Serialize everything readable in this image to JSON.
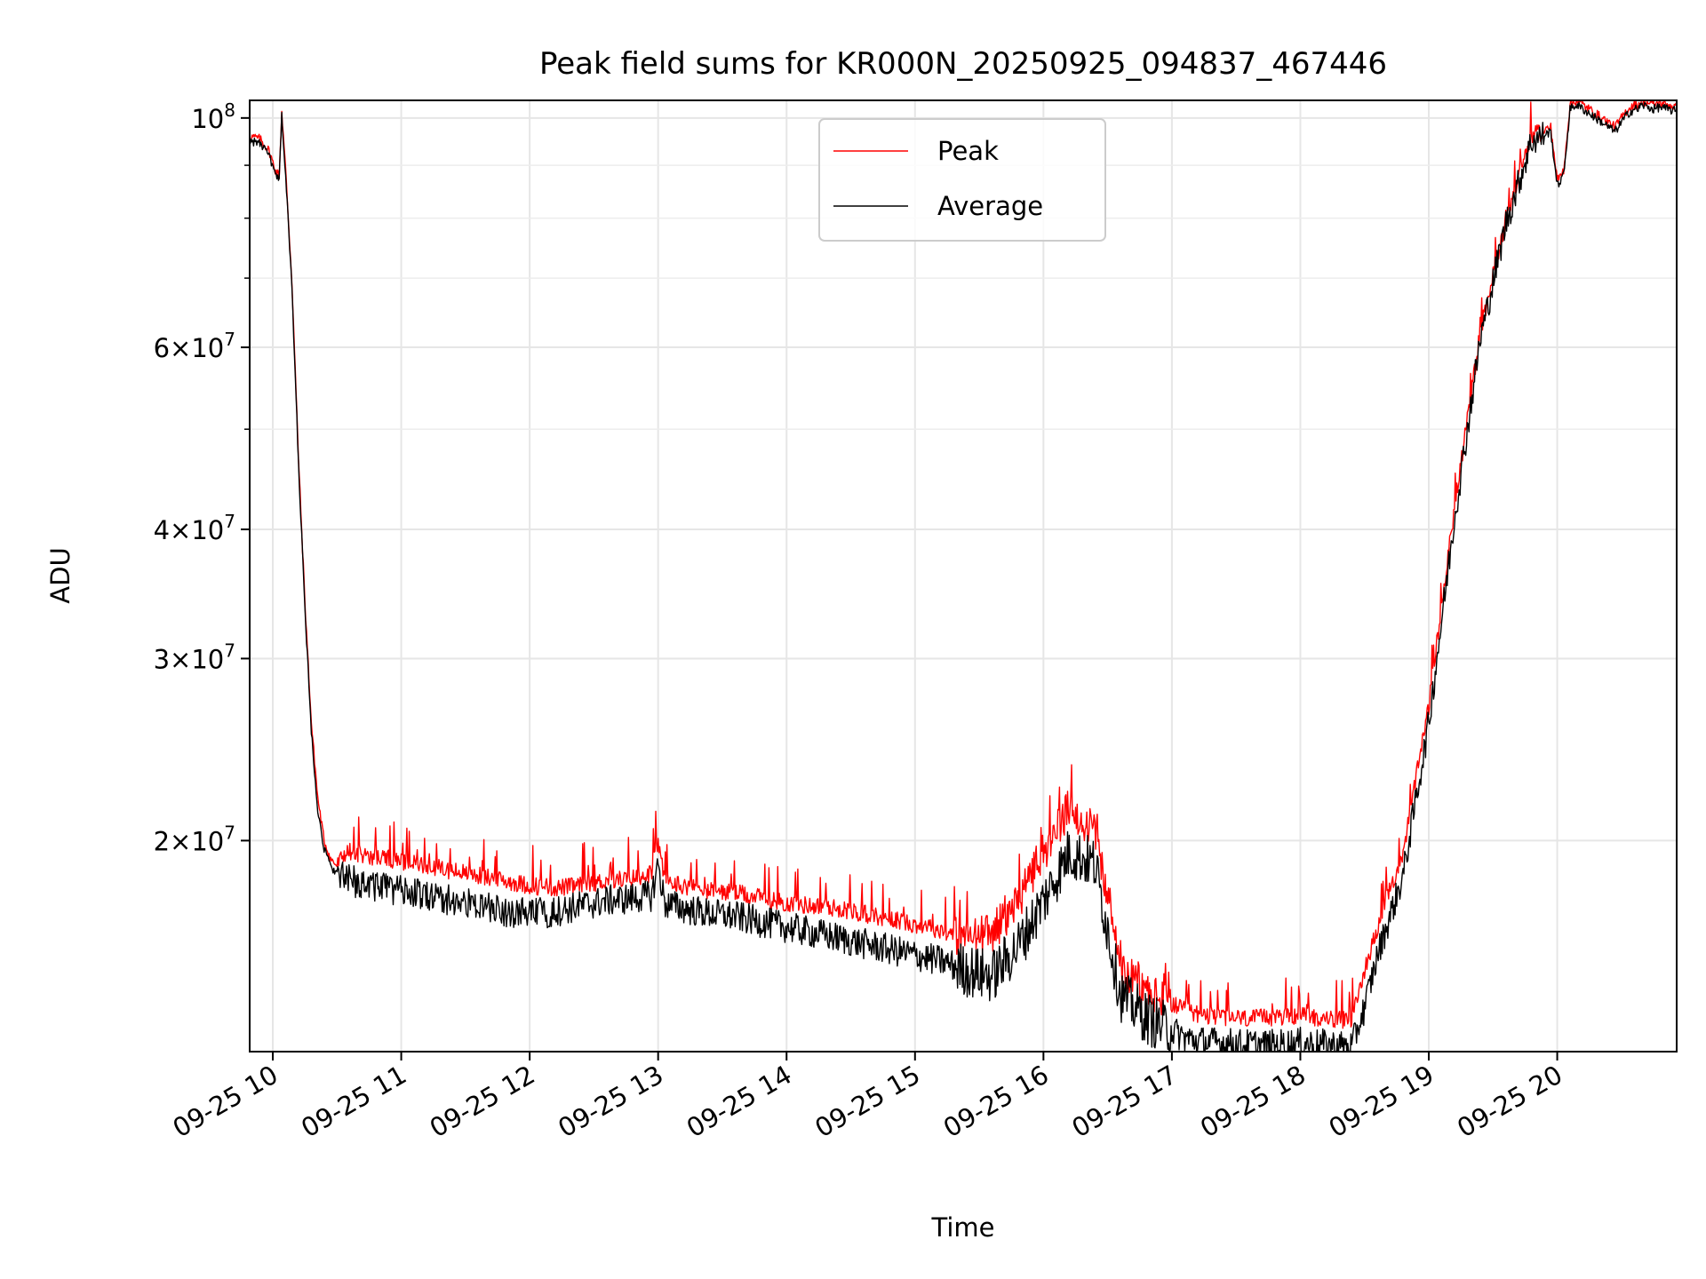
{
  "chart_data": {
    "type": "line",
    "title": "Peak field sums for KR000N_20250925_094837_467446",
    "xlabel": "Time",
    "ylabel": "ADU",
    "yscale": "log",
    "xlim": [
      9.82,
      20.93
    ],
    "ylim": [
      12500000,
      104000000
    ],
    "grid": true,
    "legend_position": "upper-center",
    "x_ticks": [
      {
        "value": 10,
        "label": "09-25 10"
      },
      {
        "value": 11,
        "label": "09-25 11"
      },
      {
        "value": 12,
        "label": "09-25 12"
      },
      {
        "value": 13,
        "label": "09-25 13"
      },
      {
        "value": 14,
        "label": "09-25 14"
      },
      {
        "value": 15,
        "label": "09-25 15"
      },
      {
        "value": 16,
        "label": "09-25 16"
      },
      {
        "value": 17,
        "label": "09-25 17"
      },
      {
        "value": 18,
        "label": "09-25 18"
      },
      {
        "value": 19,
        "label": "09-25 19"
      },
      {
        "value": 20,
        "label": "09-25 20"
      }
    ],
    "y_ticks": [
      {
        "value": 20000000,
        "mantissa": "2",
        "base": "10",
        "exp": "7"
      },
      {
        "value": 30000000,
        "mantissa": "3",
        "base": "10",
        "exp": "7"
      },
      {
        "value": 40000000,
        "mantissa": "4",
        "base": "10",
        "exp": "7"
      },
      {
        "value": 60000000,
        "mantissa": "6",
        "base": "10",
        "exp": "7"
      },
      {
        "value": 100000000,
        "mantissa": "",
        "base": "10",
        "exp": "8"
      }
    ],
    "y_minor_ticks": [
      50000000,
      70000000,
      80000000,
      90000000
    ],
    "series": [
      {
        "name": "Peak",
        "color": "#ff0000",
        "x": [
          9.82,
          9.9,
          9.97,
          10.02,
          10.05,
          10.07,
          10.1,
          10.15,
          10.2,
          10.25,
          10.3,
          10.35,
          10.4,
          10.45,
          10.5,
          10.55,
          10.6,
          10.7,
          10.8,
          11.0,
          11.2,
          11.4,
          11.6,
          11.8,
          12.0,
          12.2,
          12.4,
          12.6,
          12.8,
          12.95,
          13.0,
          13.05,
          13.2,
          13.4,
          13.6,
          13.8,
          14.0,
          14.2,
          14.4,
          14.6,
          14.8,
          15.0,
          15.2,
          15.4,
          15.6,
          15.8,
          16.0,
          16.2,
          16.4,
          16.6,
          16.8,
          16.9,
          17.0,
          17.05,
          17.1,
          17.2,
          17.4,
          17.6,
          17.8,
          18.0,
          18.2,
          18.4,
          18.5,
          18.6,
          18.8,
          19.0,
          19.2,
          19.4,
          19.6,
          19.8,
          19.95,
          20.0,
          20.05,
          20.1,
          20.15,
          20.2,
          20.25,
          20.3,
          20.35,
          20.4,
          20.45,
          20.5,
          20.55,
          20.6,
          20.63,
          20.66,
          20.7,
          20.75,
          20.8,
          20.85,
          20.93
        ],
        "y": [
          96000000,
          95500000,
          93000000,
          89000000,
          88000000,
          101500000,
          89000000,
          69000000,
          47000000,
          34000000,
          26000000,
          22000000,
          20000000,
          19200000,
          18900000,
          19400000,
          19500000,
          19400000,
          19300000,
          19100000,
          18900000,
          18700000,
          18500000,
          18300000,
          18100000,
          18000000,
          18100000,
          18300000,
          18400000,
          18600000,
          20000000,
          18300000,
          18100000,
          17900000,
          17800000,
          17600000,
          17400000,
          17300000,
          17200000,
          17000000,
          16800000,
          16600000,
          16400000,
          16100000,
          16300000,
          17500000,
          19500000,
          21500000,
          20500000,
          15000000,
          14300000,
          14100000,
          13900000,
          13800000,
          13700000,
          13600000,
          13500000,
          13450000,
          13500000,
          13550000,
          13450000,
          13400000,
          15000000,
          16500000,
          19500000,
          27000000,
          42000000,
          62000000,
          80000000,
          96000000,
          98000000,
          87000000,
          89000000,
          103000000,
          104000000,
          103000000,
          102000000,
          101000000,
          100000000,
          99000000,
          98000000,
          100000000,
          102000000,
          103000000,
          103000000,
          104000000,
          103500000,
          103000000,
          103500000,
          103000000,
          102500000
        ]
      },
      {
        "name": "Average",
        "color": "#000000",
        "x": [
          9.82,
          9.9,
          9.97,
          10.02,
          10.05,
          10.07,
          10.1,
          10.15,
          10.2,
          10.25,
          10.3,
          10.35,
          10.4,
          10.45,
          10.5,
          10.55,
          10.6,
          10.7,
          10.8,
          11.0,
          11.2,
          11.4,
          11.6,
          11.8,
          12.0,
          12.2,
          12.4,
          12.6,
          12.8,
          12.95,
          13.0,
          13.05,
          13.2,
          13.4,
          13.6,
          13.8,
          14.0,
          14.2,
          14.4,
          14.6,
          14.8,
          15.0,
          15.2,
          15.4,
          15.6,
          15.8,
          16.0,
          16.2,
          16.4,
          16.6,
          16.8,
          16.9,
          17.0,
          17.05,
          17.1,
          17.2,
          17.4,
          17.6,
          17.8,
          18.0,
          18.2,
          18.4,
          18.5,
          18.6,
          18.8,
          19.0,
          19.2,
          19.4,
          19.6,
          19.8,
          19.95,
          20.0,
          20.05,
          20.1,
          20.15,
          20.2,
          20.25,
          20.3,
          20.35,
          20.4,
          20.45,
          20.5,
          20.55,
          20.6,
          20.63,
          20.66,
          20.7,
          20.75,
          20.8,
          20.85,
          20.93
        ],
        "y": [
          95000000,
          94500000,
          92000000,
          88000000,
          87000000,
          100500000,
          88000000,
          68000000,
          46500000,
          33500000,
          25500000,
          21500000,
          19600000,
          18900000,
          18600000,
          18400000,
          18300000,
          18200000,
          18100000,
          17900000,
          17700000,
          17500000,
          17300000,
          17100000,
          17000000,
          17100000,
          17300000,
          17500000,
          17600000,
          17700000,
          19000000,
          17400000,
          17200000,
          17000000,
          16900000,
          16700000,
          16500000,
          16300000,
          16100000,
          15900000,
          15700000,
          15500000,
          15300000,
          15000000,
          14800000,
          15800000,
          17500000,
          19500000,
          19000000,
          14200000,
          13500000,
          13300000,
          13100000,
          13000000,
          12900000,
          12800000,
          12750000,
          12700000,
          12700000,
          12750000,
          12700000,
          12650000,
          13800000,
          15500000,
          18500000,
          26000000,
          41000000,
          61000000,
          79000000,
          95000000,
          97000000,
          86000000,
          88000000,
          102000000,
          103000000,
          102000000,
          101000000,
          100000000,
          99000000,
          98000000,
          97000000,
          99000000,
          101000000,
          102000000,
          102000000,
          103000000,
          102500000,
          102000000,
          102500000,
          102000000,
          101500000
        ]
      }
    ]
  }
}
